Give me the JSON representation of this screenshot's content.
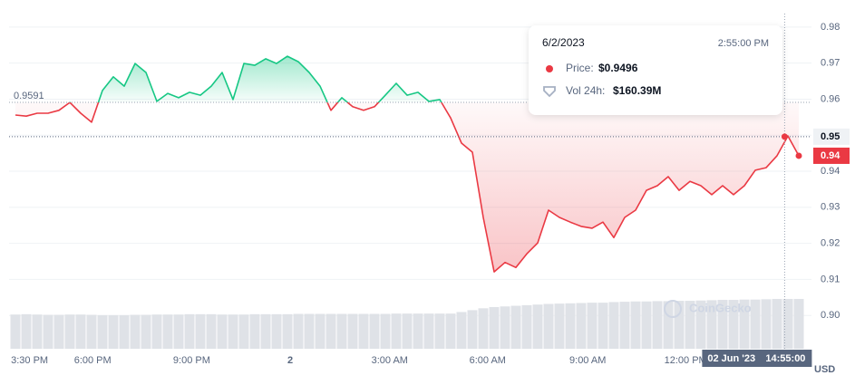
{
  "chart_data": {
    "type": "line",
    "series": [
      {
        "color": "#16c784",
        "color_below": "#ea3943",
        "values": [
          0.9556,
          0.9553,
          0.9561,
          0.9561,
          0.9569,
          0.9591,
          0.9561,
          0.9536,
          0.9624,
          0.9662,
          0.9636,
          0.9699,
          0.9674,
          0.9594,
          0.9616,
          0.9604,
          0.9619,
          0.9611,
          0.9636,
          0.9674,
          0.9599,
          0.9699,
          0.9694,
          0.9712,
          0.9699,
          0.9719,
          0.9704,
          0.9674,
          0.9636,
          0.9569,
          0.9604,
          0.9579,
          0.9569,
          0.9579,
          0.9611,
          0.9644,
          0.9611,
          0.9619,
          0.9594,
          0.9599,
          0.9548,
          0.9478,
          0.9453,
          0.9272,
          0.9121,
          0.9147,
          0.9133,
          0.9171,
          0.9201,
          0.9292,
          0.9272,
          0.9259,
          0.9247,
          0.9242,
          0.9259,
          0.9216,
          0.9272,
          0.9292,
          0.9347,
          0.936,
          0.9385,
          0.9347,
          0.9372,
          0.936,
          0.9335,
          0.936,
          0.9335,
          0.936,
          0.9403,
          0.941,
          0.9443,
          0.9498,
          0.9443
        ]
      }
    ],
    "volume": {
      "color": "#dfe2e7",
      "values": [
        110,
        111,
        110,
        109,
        109,
        110,
        110,
        109,
        108,
        108,
        108,
        109,
        109,
        110,
        110,
        110,
        111,
        111,
        111,
        110,
        110,
        110,
        111,
        111,
        111,
        111,
        112,
        112,
        112,
        112,
        112,
        112,
        112,
        112,
        112,
        113,
        113,
        113,
        113,
        113,
        113,
        118,
        124,
        130,
        134,
        136,
        138,
        140,
        142,
        144,
        145,
        146,
        147,
        148,
        148,
        150,
        151,
        152,
        152,
        153,
        153,
        154,
        154,
        155,
        156,
        157,
        157,
        158,
        158,
        159,
        160,
        160,
        160
      ]
    },
    "baseline": {
      "value": 0.9591,
      "label": "0.9591"
    },
    "xlim": [
      0,
      72
    ],
    "xticks": [
      {
        "value": 1.3,
        "label": "3:30 PM"
      },
      {
        "value": 7.1,
        "label": "6:00 PM"
      },
      {
        "value": 16.2,
        "label": "9:00 PM"
      },
      {
        "value": 25.25,
        "label": "2"
      },
      {
        "value": 34.4,
        "label": "3:00 AM"
      },
      {
        "value": 43.4,
        "label": "6:00 AM"
      },
      {
        "value": 52.6,
        "label": "9:00 AM"
      },
      {
        "value": 61.6,
        "label": "12:00 PM"
      }
    ],
    "ylim": [
      0.89,
      0.985
    ],
    "yticks": [
      {
        "value": 0.9,
        "label": "0.90"
      },
      0.91,
      0.92,
      0.93,
      0.94,
      0.95,
      0.96,
      0.97,
      0.98
    ],
    "grid": true,
    "y_unit": "USD",
    "last_label": "0.94",
    "watermark": "CoinGecko",
    "hover": {
      "x": 70.7,
      "y": 0.9496,
      "y_label": "0.95",
      "date": "6/2/2023",
      "time": "2:55:00 PM",
      "price_label": "Price:",
      "price": "$0.9496",
      "volume_label": "Vol 24h:",
      "volume": "$160.39M",
      "axis_date": "02 Jun '23",
      "axis_time": "14:55:00"
    }
  }
}
